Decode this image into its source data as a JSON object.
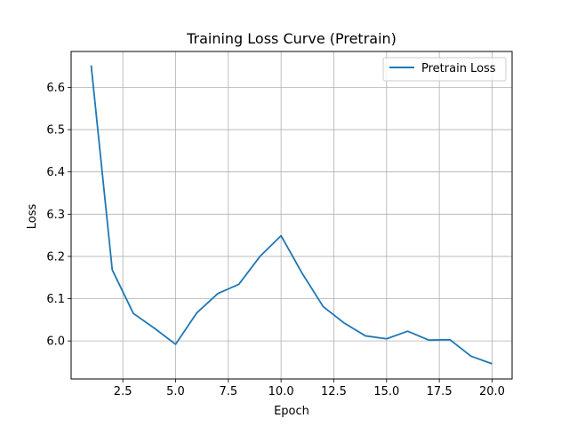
{
  "chart_data": {
    "type": "line",
    "title": "Training Loss Curve (Pretrain)",
    "xlabel": "Epoch",
    "ylabel": "Loss",
    "xlim": [
      0.05,
      20.95
    ],
    "ylim": [
      5.91,
      6.685
    ],
    "xticks": [
      2.5,
      5.0,
      7.5,
      10.0,
      12.5,
      15.0,
      17.5,
      20.0
    ],
    "xtick_labels": [
      "2.5",
      "5.0",
      "7.5",
      "10.0",
      "12.5",
      "15.0",
      "17.5",
      "20.0"
    ],
    "yticks": [
      6.0,
      6.1,
      6.2,
      6.3,
      6.4,
      6.5,
      6.6
    ],
    "ytick_labels": [
      "6.0",
      "6.1",
      "6.2",
      "6.3",
      "6.4",
      "6.5",
      "6.6"
    ],
    "grid": true,
    "legend_position": "top-right",
    "series": [
      {
        "name": "Pretrain Loss",
        "color": "#1f77b4",
        "x": [
          1,
          2,
          3,
          4,
          5,
          6,
          7,
          8,
          9,
          10,
          11,
          12,
          13,
          14,
          15,
          16,
          17,
          18,
          19,
          20
        ],
        "y": [
          6.652,
          6.168,
          6.065,
          6.03,
          5.992,
          6.066,
          6.112,
          6.134,
          6.2,
          6.249,
          6.16,
          6.081,
          6.042,
          6.012,
          6.005,
          6.023,
          6.002,
          6.003,
          5.964,
          5.946
        ]
      }
    ]
  }
}
